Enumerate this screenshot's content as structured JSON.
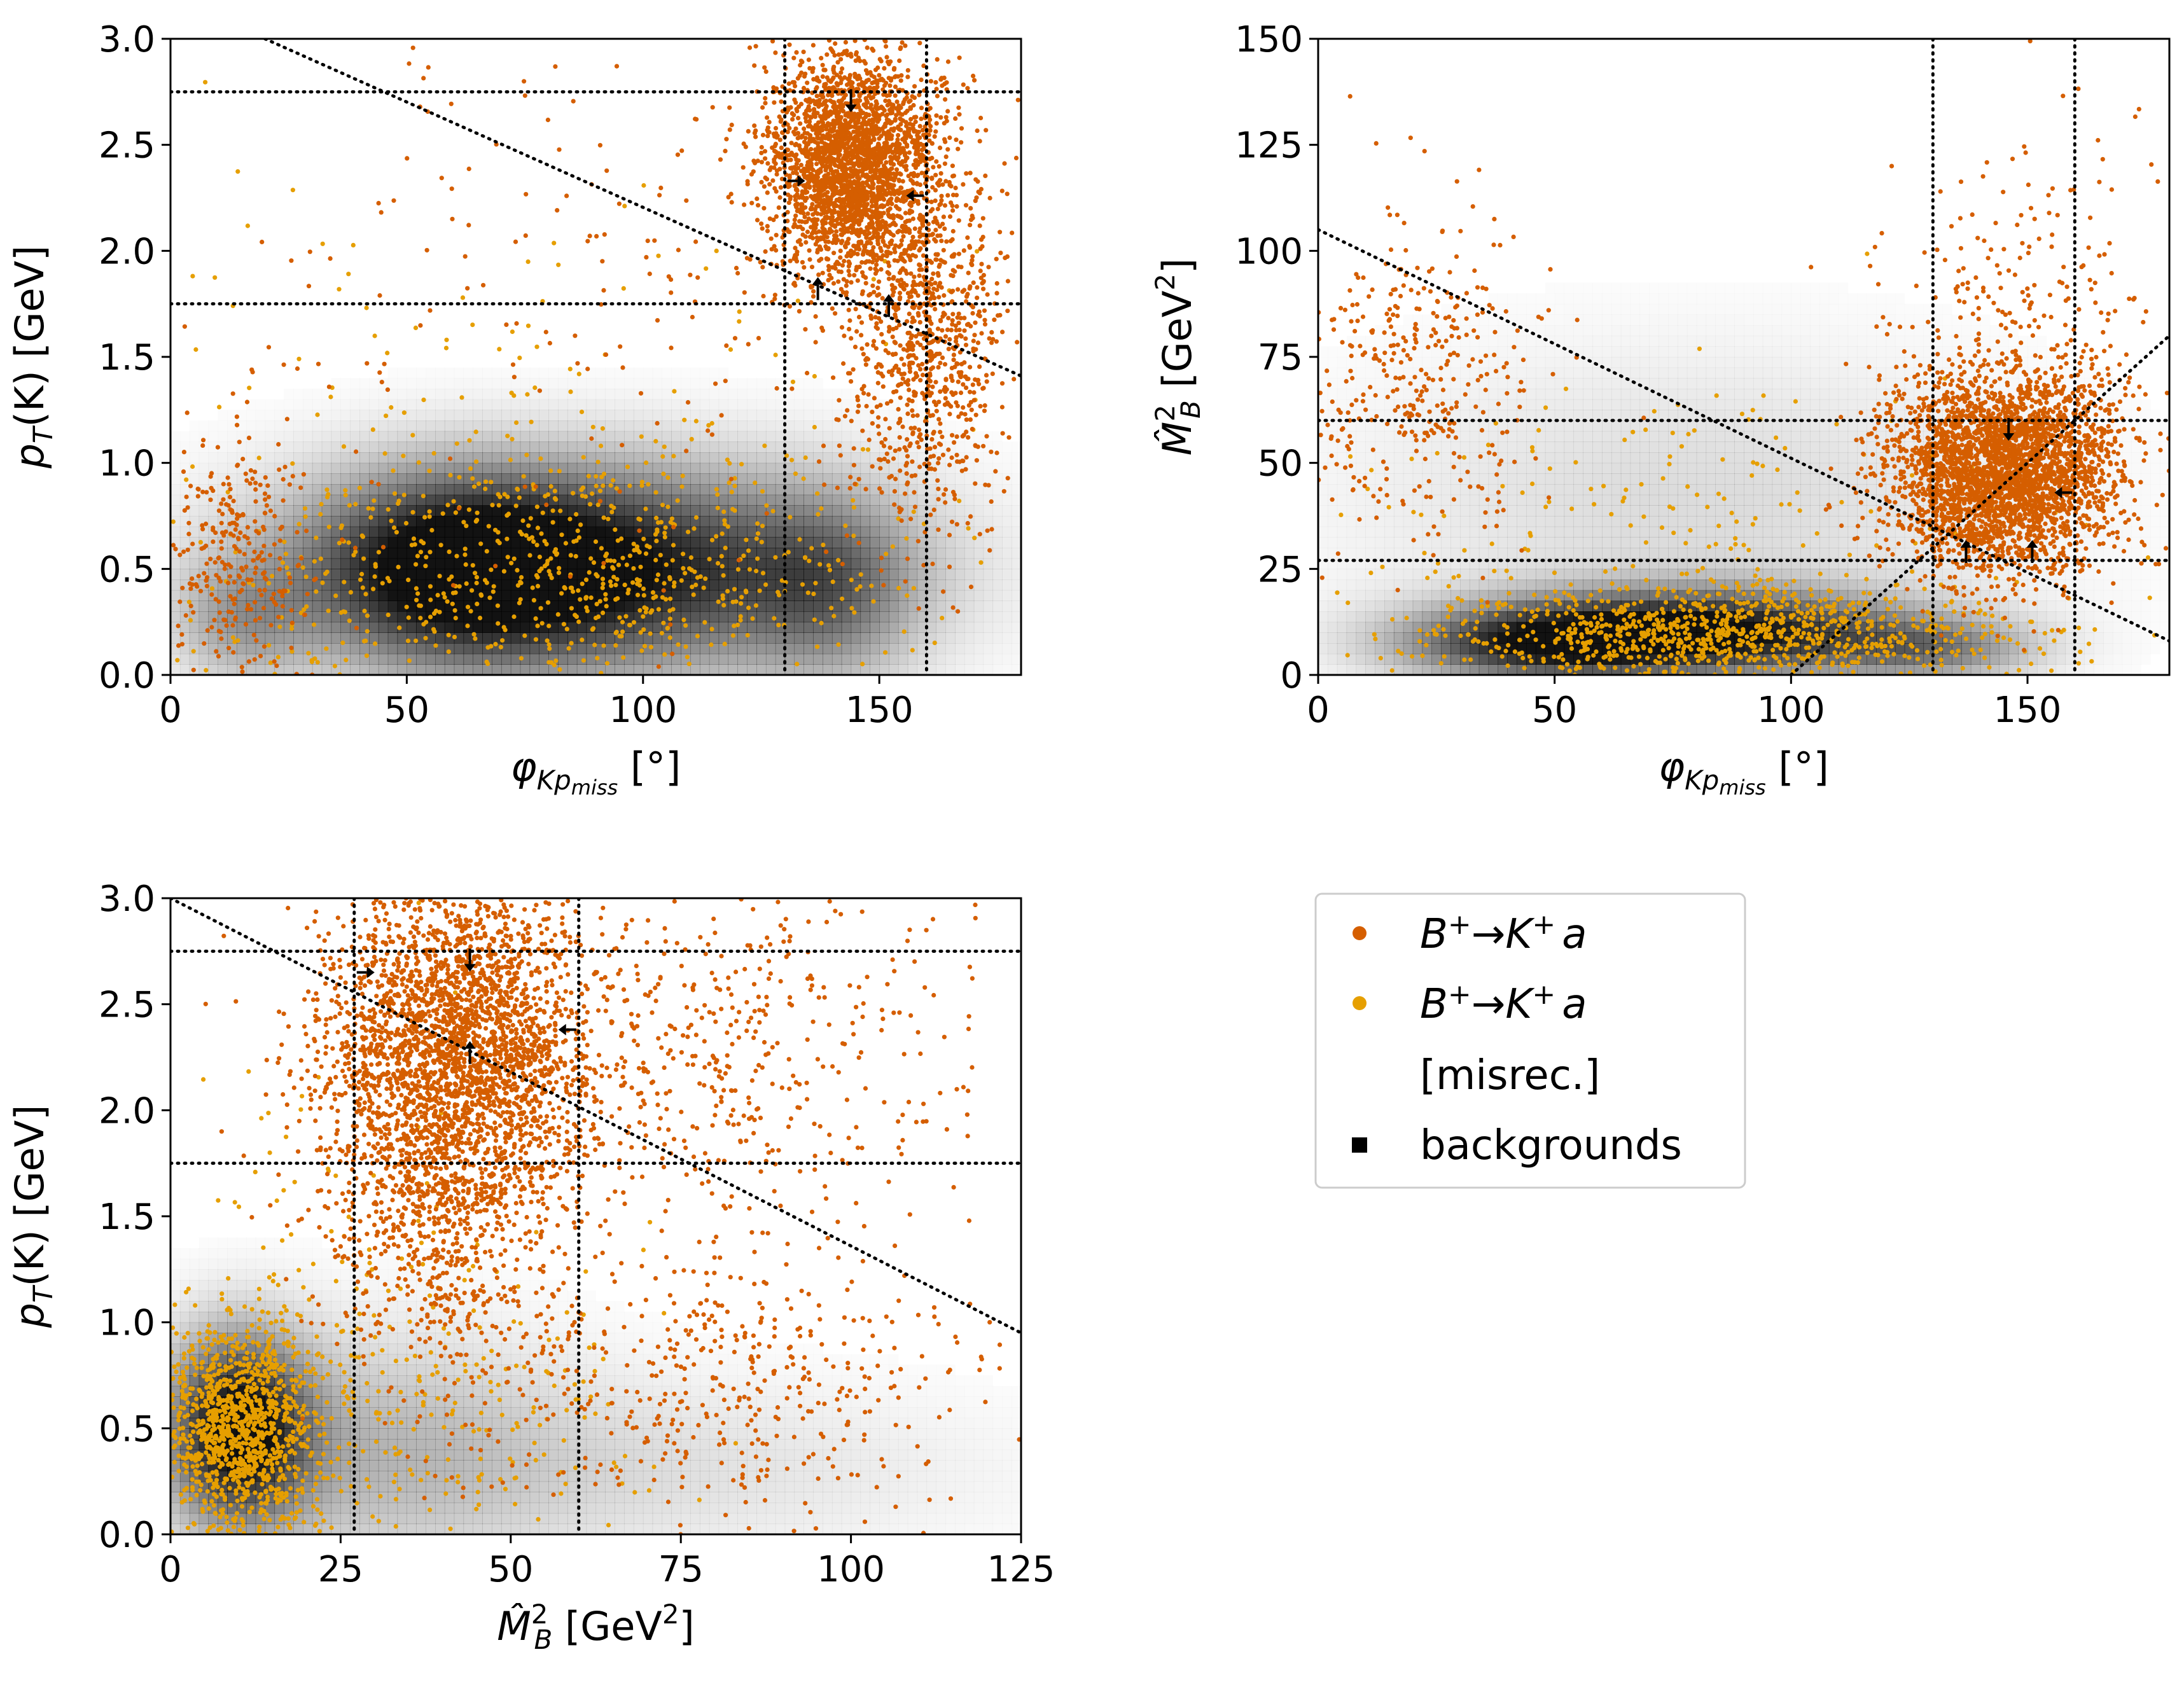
{
  "colors": {
    "signal": "#d55e00",
    "misrec": "#e69f00",
    "background_density": "#000000",
    "cut_line": "#000000"
  },
  "legend": {
    "entries": [
      {
        "marker": "circle",
        "color": "#d55e00",
        "label_main": "B",
        "label_sup1": "+",
        "label_arrow": "→",
        "label_k": "K",
        "label_sup2": "+",
        "label_a": "a",
        "label_extra": ""
      },
      {
        "marker": "circle",
        "color": "#e69f00",
        "label_main": "B",
        "label_sup1": "+",
        "label_arrow": "→",
        "label_k": "K",
        "label_sup2": "+",
        "label_a": "a",
        "label_extra": "[misrec.]"
      },
      {
        "marker": "square",
        "color": "#000000",
        "label_text": "backgrounds"
      }
    ],
    "placement": "lower-right"
  },
  "chart_data": [
    {
      "type": "scatter",
      "panel": "top-left",
      "xlabel": "φ_{Kp_miss} [°]",
      "xlabel_parts": {
        "sym": "φ",
        "sub": "Kp",
        "subsub": "miss",
        "unit": " [°]"
      },
      "ylabel": "p_T(K) [GeV]",
      "ylabel_parts": {
        "sym": "p",
        "sub": "T",
        "rest": "(K) [GeV]"
      },
      "xlim": [
        0,
        180
      ],
      "ylim": [
        0,
        3.0
      ],
      "xticks": [
        "0",
        "50",
        "100",
        "150"
      ],
      "xtick_values": [
        0,
        50,
        100,
        150
      ],
      "yticks": [
        "0.0",
        "0.5",
        "1.0",
        "1.5",
        "2.0",
        "2.5",
        "3.0"
      ],
      "ytick_values": [
        0,
        0.5,
        1.0,
        1.5,
        2.0,
        2.5,
        3.0
      ],
      "cuts_vertical": [
        130,
        160
      ],
      "cuts_horizontal": [
        1.75,
        2.75
      ],
      "cut_diagonal": [
        [
          20,
          3.0
        ],
        [
          180,
          1.41
        ]
      ],
      "background_blobs": [
        {
          "cx": 88,
          "cy": 0.5,
          "sx": 40,
          "sy": 0.33,
          "w": 1.0
        },
        {
          "cx": 60,
          "cy": 0.5,
          "sx": 20,
          "sy": 0.3,
          "w": 0.6
        },
        {
          "cx": 140,
          "cy": 0.4,
          "sx": 12,
          "sy": 0.3,
          "w": 0.35
        },
        {
          "cx": 15,
          "cy": 0.25,
          "sx": 10,
          "sy": 0.2,
          "w": 0.3
        }
      ],
      "signal_clusters": [
        {
          "cx": 144,
          "cy": 2.4,
          "sx": 9,
          "sy": 0.27,
          "n": 2600
        },
        {
          "cx": 160,
          "cy": 1.6,
          "sx": 8,
          "sy": 0.45,
          "n": 900
        },
        {
          "cx": 15,
          "cy": 0.55,
          "sx": 9,
          "sy": 0.3,
          "n": 300
        },
        {
          "cx": 100,
          "cy": 1.8,
          "sx": 45,
          "sy": 0.7,
          "n": 220
        }
      ],
      "misrec_clusters": [
        {
          "cx": 85,
          "cy": 0.5,
          "sx": 35,
          "sy": 0.3,
          "n": 800
        },
        {
          "cx": 75,
          "cy": 1.5,
          "sx": 45,
          "sy": 0.5,
          "n": 100
        }
      ],
      "arrows": [
        {
          "x": 144,
          "y": 2.75,
          "dir": "down"
        },
        {
          "x": 130,
          "y": 2.33,
          "dir": "right"
        },
        {
          "x": 160,
          "y": 2.26,
          "dir": "left"
        },
        {
          "x": 137,
          "y": 1.78,
          "dir": "up"
        },
        {
          "x": 152,
          "y": 1.7,
          "dir": "up"
        }
      ]
    },
    {
      "type": "scatter",
      "panel": "top-right",
      "xlabel": "φ_{Kp_miss} [°]",
      "xlabel_parts": {
        "sym": "φ",
        "sub": "Kp",
        "subsub": "miss",
        "unit": " [°]"
      },
      "ylabel": "M̂²_B [GeV²]",
      "ylabel_parts": {
        "sym": "M̂",
        "sup": "2",
        "sub": "B",
        "rest": " [GeV",
        "unitsup": "2",
        "close": "]"
      },
      "xlim": [
        0,
        180
      ],
      "ylim": [
        0,
        150
      ],
      "xticks": [
        "0",
        "50",
        "100",
        "150"
      ],
      "xtick_values": [
        0,
        50,
        100,
        150
      ],
      "yticks": [
        "0",
        "25",
        "50",
        "75",
        "100",
        "125",
        "150"
      ],
      "ytick_values": [
        0,
        25,
        50,
        75,
        100,
        125,
        150
      ],
      "cuts_vertical": [
        130,
        160
      ],
      "cuts_horizontal": [
        27,
        60
      ],
      "cut_diagonal": [
        [
          0,
          105
        ],
        [
          180,
          8
        ]
      ],
      "cut_diagonal_2": [
        [
          100,
          0
        ],
        [
          180,
          80
        ]
      ],
      "background_blobs": [
        {
          "cx": 80,
          "cy": 10,
          "sx": 30,
          "sy": 7,
          "w": 1.0
        },
        {
          "cx": 45,
          "cy": 7,
          "sx": 20,
          "sy": 6,
          "w": 0.6
        },
        {
          "cx": 130,
          "cy": 6,
          "sx": 15,
          "sy": 5,
          "w": 0.4
        },
        {
          "cx": 80,
          "cy": 40,
          "sx": 50,
          "sy": 25,
          "w": 0.15
        }
      ],
      "signal_clusters": [
        {
          "cx": 145,
          "cy": 48,
          "sx": 12,
          "sy": 12,
          "n": 3200
        },
        {
          "cx": 20,
          "cy": 70,
          "sx": 14,
          "sy": 20,
          "n": 400
        },
        {
          "cx": 150,
          "cy": 90,
          "sx": 15,
          "sy": 22,
          "n": 200
        }
      ],
      "misrec_clusters": [
        {
          "cx": 85,
          "cy": 10,
          "sx": 30,
          "sy": 6,
          "n": 1000
        },
        {
          "cx": 80,
          "cy": 35,
          "sx": 40,
          "sy": 18,
          "n": 180
        }
      ],
      "arrows": [
        {
          "x": 146,
          "y": 60,
          "dir": "down"
        },
        {
          "x": 160,
          "y": 43,
          "dir": "left"
        },
        {
          "x": 137,
          "y": 27,
          "dir": "up"
        },
        {
          "x": 151,
          "y": 27,
          "dir": "up"
        }
      ]
    },
    {
      "type": "scatter",
      "panel": "bottom-left",
      "xlabel": "M̂²_B [GeV²]",
      "xlabel_parts": {
        "sym": "M̂",
        "sup": "2",
        "sub": "B",
        "rest": " [GeV",
        "unitsup": "2",
        "close": "]"
      },
      "ylabel": "p_T(K) [GeV]",
      "ylabel_parts": {
        "sym": "p",
        "sub": "T",
        "rest": "(K) [GeV]"
      },
      "xlim": [
        0,
        125
      ],
      "ylim": [
        0,
        3.0
      ],
      "xticks": [
        "0",
        "25",
        "50",
        "75",
        "100",
        "125"
      ],
      "xtick_values": [
        0,
        25,
        50,
        75,
        100,
        125
      ],
      "yticks": [
        "0.0",
        "0.5",
        "1.0",
        "1.5",
        "2.0",
        "2.5",
        "3.0"
      ],
      "ytick_values": [
        0,
        0.5,
        1.0,
        1.5,
        2.0,
        2.5,
        3.0
      ],
      "cuts_vertical": [
        27,
        60
      ],
      "cuts_horizontal": [
        1.75,
        2.75
      ],
      "cut_diagonal": [
        [
          0,
          3.0
        ],
        [
          125,
          0.95
        ]
      ],
      "background_blobs": [
        {
          "cx": 10,
          "cy": 0.5,
          "sx": 7,
          "sy": 0.3,
          "w": 1.0
        },
        {
          "cx": 30,
          "cy": 0.4,
          "sx": 20,
          "sy": 0.4,
          "w": 0.25
        },
        {
          "cx": 70,
          "cy": 0.3,
          "sx": 35,
          "sy": 0.3,
          "w": 0.12
        }
      ],
      "signal_clusters": [
        {
          "cx": 42,
          "cy": 2.3,
          "sx": 10,
          "sy": 0.4,
          "n": 2800
        },
        {
          "cx": 40,
          "cy": 1.5,
          "sx": 9,
          "sy": 0.4,
          "n": 700
        },
        {
          "cx": 80,
          "cy": 0.7,
          "sx": 20,
          "sy": 0.3,
          "n": 450
        },
        {
          "cx": 80,
          "cy": 2.2,
          "sx": 18,
          "sy": 0.45,
          "n": 500
        }
      ],
      "misrec_clusters": [
        {
          "cx": 10,
          "cy": 0.5,
          "sx": 6,
          "sy": 0.25,
          "n": 1100
        },
        {
          "cx": 35,
          "cy": 0.6,
          "sx": 18,
          "sy": 0.4,
          "n": 300
        },
        {
          "cx": 20,
          "cy": 1.5,
          "sx": 10,
          "sy": 0.4,
          "n": 50
        }
      ],
      "arrows": [
        {
          "x": 27,
          "y": 2.65,
          "dir": "right"
        },
        {
          "x": 44,
          "y": 2.75,
          "dir": "down"
        },
        {
          "x": 44,
          "y": 2.23,
          "dir": "up"
        },
        {
          "x": 60,
          "y": 2.38,
          "dir": "left"
        }
      ]
    }
  ]
}
